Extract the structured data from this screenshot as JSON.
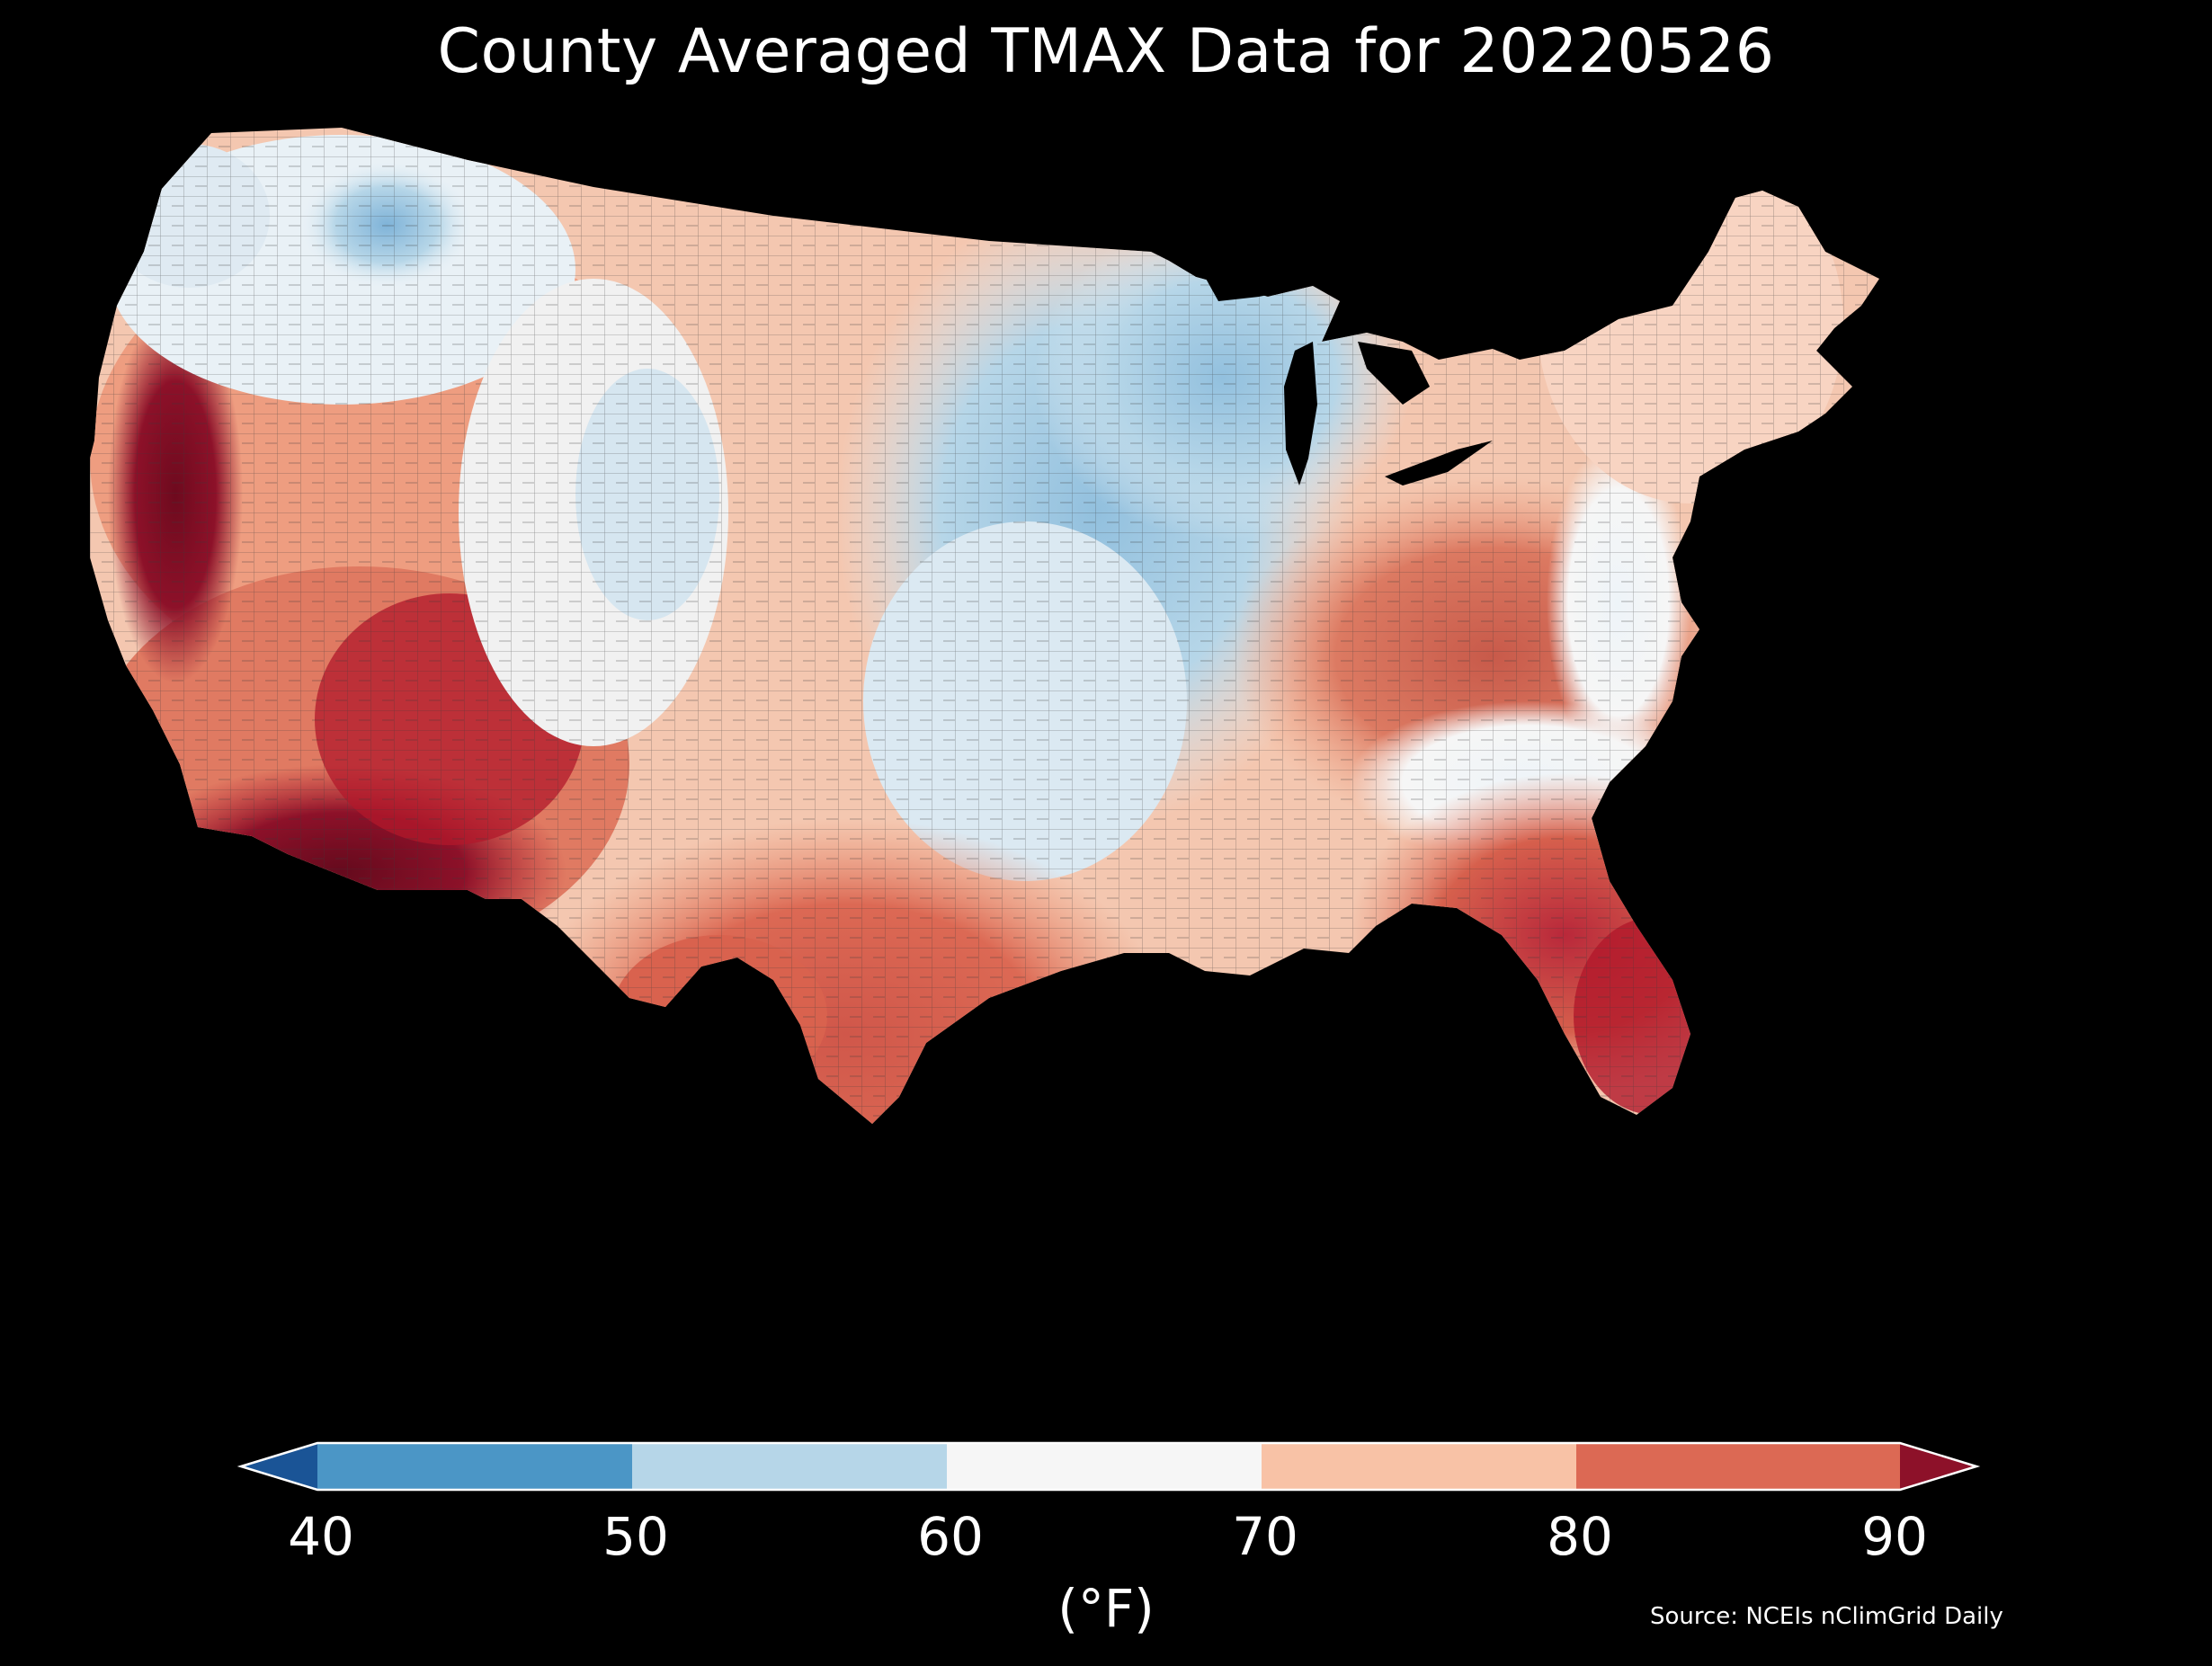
{
  "title": "County Averaged TMAX Data for 20220526",
  "colorbar": {
    "ticks": [
      "40",
      "50",
      "60",
      "70",
      "80",
      "90"
    ],
    "unit_label": "(°F)",
    "bins": [
      {
        "range": "<40",
        "color": "#1a5496"
      },
      {
        "range": "40-50",
        "color": "#4b96c6"
      },
      {
        "range": "50-60",
        "color": "#b6d6e8"
      },
      {
        "range": "60-70",
        "color": "#f6f6f6"
      },
      {
        "range": "70-80",
        "color": "#f8c2a6"
      },
      {
        "range": "80-90",
        "color": "#dc6954"
      },
      {
        "range": ">90",
        "color": "#8d1129"
      }
    ]
  },
  "source": "Source: NCEIs nClimGrid Daily",
  "map": {
    "region": "Contiguous United States",
    "background_color": "#000000",
    "county_border_color": "#333333"
  }
}
